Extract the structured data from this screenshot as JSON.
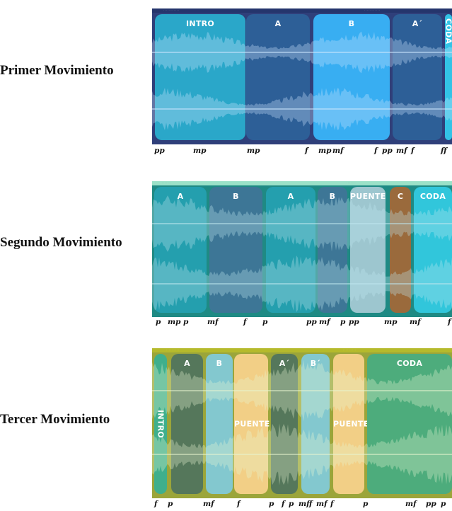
{
  "movements": [
    {
      "label": "Primer Movimiento",
      "colors": {
        "panel": "#2f3f7a",
        "top": "#25356c",
        "wave": "#cfe8ff"
      },
      "sections": [
        {
          "label": "INTRO",
          "color": "#2aa7c9",
          "vertical": false
        },
        {
          "label": "A",
          "color": "#2d5f97",
          "vertical": false
        },
        {
          "label": "B",
          "color": "#38aef2",
          "vertical": false
        },
        {
          "label": "A´",
          "color": "#2d5f97",
          "vertical": false
        },
        {
          "label": "CODA",
          "color": "#33c3e6",
          "vertical": true
        }
      ],
      "dynamics": [
        "pp",
        "mp",
        "mp",
        "f",
        "mp",
        "mf",
        "f",
        "pp",
        "mf",
        "f",
        "ff"
      ]
    },
    {
      "label": "Segundo Movimiento",
      "colors": {
        "panel": "#1f8a84",
        "top": "#9be1c8",
        "wave": "#bfe7f0"
      },
      "sections": [
        {
          "label": "A",
          "color": "#249fae",
          "vertical": false
        },
        {
          "label": "B",
          "color": "#3d7696",
          "vertical": false
        },
        {
          "label": "A",
          "color": "#249fae",
          "vertical": false
        },
        {
          "label": "B",
          "color": "#3d7696",
          "vertical": false
        },
        {
          "label": "PUENTE",
          "color": "#9dc6cf",
          "vertical": false
        },
        {
          "label": "C",
          "color": "#9a6a3c",
          "vertical": false
        },
        {
          "label": "CODA",
          "color": "#31c6db",
          "vertical": false
        }
      ],
      "dynamics": [
        "p",
        "mp",
        "p",
        "mf",
        "f",
        "p",
        "pp",
        "mf",
        "p",
        "pp",
        "mp",
        "mf",
        "f"
      ]
    },
    {
      "label": "Tercer Movimiento",
      "colors": {
        "panel": "#9ba53a",
        "top": "#b5ba2c",
        "wave": "#e8f5d0"
      },
      "sections": [
        {
          "label": "INTRO",
          "color": "#3faf8c",
          "vertical": true
        },
        {
          "label": "A",
          "color": "#55775b",
          "vertical": false
        },
        {
          "label": "B",
          "color": "#83c8cf",
          "vertical": false
        },
        {
          "label": "PUENTE",
          "color": "#f2cf86",
          "vertical": false
        },
        {
          "label": "A´",
          "color": "#55775b",
          "vertical": false
        },
        {
          "label": "B´",
          "color": "#83c8cf",
          "vertical": false
        },
        {
          "label": "PUENTE",
          "color": "#f2cf86",
          "vertical": false
        },
        {
          "label": "CODA",
          "color": "#4dac7c",
          "vertical": false
        }
      ],
      "dynamics": [
        "f",
        "p",
        "mf",
        "f",
        "p",
        "f",
        "p",
        "mf",
        "f",
        "mf",
        "f",
        "p",
        "mf",
        "pp",
        "p"
      ]
    }
  ]
}
